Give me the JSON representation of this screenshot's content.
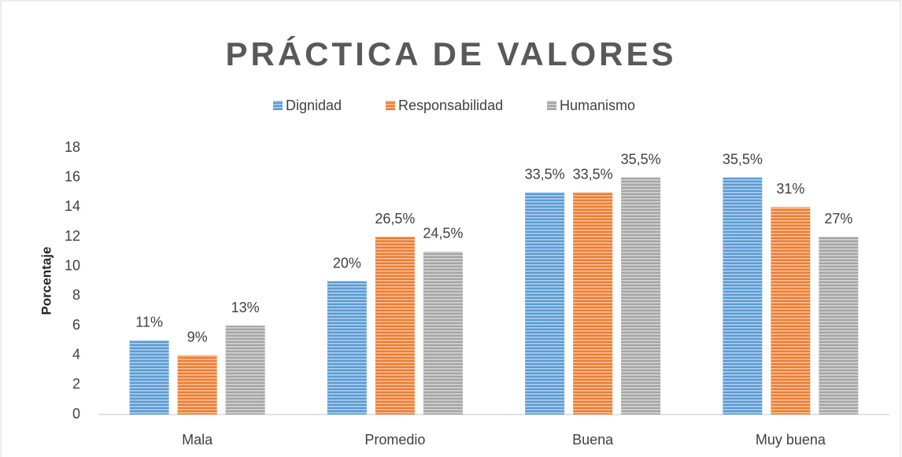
{
  "chart_data": {
    "type": "bar",
    "title": "PRÁCTICA DE VALORES",
    "y_label": "Porcentaje",
    "categories": [
      "Mala",
      "Promedio",
      "Buena",
      "Muy buena"
    ],
    "series": [
      {
        "name": "Dignidad",
        "color": "#5b9bd5",
        "values": [
          5,
          9,
          15,
          16
        ],
        "percent_labels": [
          "11%",
          "20%",
          "33,5%",
          "35,5%"
        ]
      },
      {
        "name": "Responsabilidad",
        "color": "#ed7d31",
        "values": [
          4,
          12,
          15,
          14
        ],
        "percent_labels": [
          "9%",
          "26,5%",
          "33,5%",
          "31%"
        ]
      },
      {
        "name": "Humanismo",
        "color": "#a5a5a5",
        "values": [
          6,
          11,
          16,
          12
        ],
        "percent_labels": [
          "13%",
          "24,5%",
          "35,5%",
          "27%"
        ]
      }
    ],
    "ylim": [
      0,
      18
    ],
    "yticks": [
      0,
      2,
      4,
      6,
      8,
      10,
      12,
      14,
      16,
      18
    ],
    "grid": false,
    "legend": "top"
  }
}
